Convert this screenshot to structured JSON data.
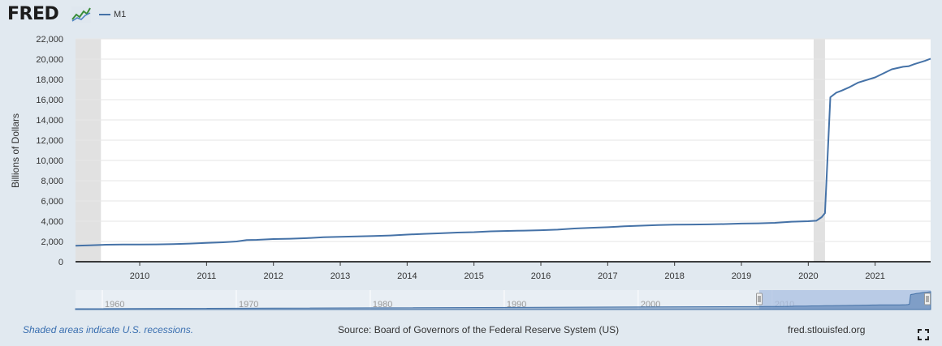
{
  "header": {
    "logo_text": "FRED",
    "logo_icon": "fred-line-graph-icon"
  },
  "footer": {
    "recession_note": "Shaded areas indicate U.S. recessions.",
    "source": "Source: Board of Governors of the Federal Reserve System (US)",
    "site": "fred.stlouisfed.org",
    "fullscreen_icon": "fullscreen-icon"
  },
  "colors": {
    "series": "#4572a7",
    "recession": "#e1e1e1",
    "background": "#e1e9f0",
    "plot": "#ffffff",
    "navigator_fill": "#a9bfe1"
  },
  "chart_data": {
    "type": "line",
    "title": "",
    "xlabel": "",
    "ylabel": "Billions of Dollars",
    "legend": "top-left",
    "grid": true,
    "ylim": [
      0,
      22000
    ],
    "xlim": [
      2009.04,
      2021.83
    ],
    "y_ticks": [
      "0",
      "2,000",
      "4,000",
      "6,000",
      "8,000",
      "10,000",
      "12,000",
      "14,000",
      "16,000",
      "18,000",
      "20,000",
      "22,000"
    ],
    "y_tick_values": [
      0,
      2000,
      4000,
      6000,
      8000,
      10000,
      12000,
      14000,
      16000,
      18000,
      20000,
      22000
    ],
    "x_ticks": [
      "2010",
      "2011",
      "2012",
      "2013",
      "2014",
      "2015",
      "2016",
      "2017",
      "2018",
      "2019",
      "2020",
      "2021"
    ],
    "x_tick_values": [
      2010,
      2011,
      2012,
      2013,
      2014,
      2015,
      2016,
      2017,
      2018,
      2019,
      2020,
      2021
    ],
    "recessions": [
      [
        2009.04,
        2009.42
      ],
      [
        2020.08,
        2020.25
      ]
    ],
    "series": [
      {
        "name": "M1",
        "x": [
          2009.04,
          2009.25,
          2009.5,
          2009.75,
          2010.0,
          2010.25,
          2010.5,
          2010.75,
          2011.0,
          2011.25,
          2011.45,
          2011.6,
          2011.75,
          2012.0,
          2012.25,
          2012.5,
          2012.75,
          2013.0,
          2013.25,
          2013.5,
          2013.75,
          2014.0,
          2014.25,
          2014.5,
          2014.75,
          2015.0,
          2015.25,
          2015.5,
          2015.75,
          2016.0,
          2016.25,
          2016.5,
          2016.75,
          2017.0,
          2017.25,
          2017.5,
          2017.75,
          2018.0,
          2018.25,
          2018.5,
          2018.75,
          2019.0,
          2019.25,
          2019.5,
          2019.75,
          2020.0,
          2020.12,
          2020.2,
          2020.25,
          2020.33,
          2020.42,
          2020.5,
          2020.62,
          2020.75,
          2021.0,
          2021.25,
          2021.42,
          2021.5,
          2021.58,
          2021.75,
          2021.83
        ],
        "y": [
          1580,
          1620,
          1680,
          1700,
          1700,
          1710,
          1740,
          1790,
          1860,
          1920,
          2000,
          2140,
          2160,
          2240,
          2270,
          2330,
          2420,
          2460,
          2500,
          2540,
          2590,
          2680,
          2750,
          2810,
          2880,
          2920,
          3000,
          3040,
          3070,
          3110,
          3170,
          3280,
          3350,
          3410,
          3500,
          3560,
          3620,
          3660,
          3670,
          3690,
          3720,
          3770,
          3790,
          3840,
          3950,
          4000,
          4050,
          4400,
          4800,
          16240,
          16700,
          16900,
          17250,
          17700,
          18200,
          19000,
          19250,
          19300,
          19500,
          19850,
          20050
        ]
      }
    ],
    "navigator": {
      "x_ticks": [
        "1960",
        "1970",
        "1980",
        "1990",
        "2000",
        "2010"
      ],
      "x_tick_values": [
        1960,
        1970,
        1980,
        1990,
        2000,
        2010
      ],
      "xlim": [
        1958.0,
        2021.83
      ],
      "selected": [
        2009.04,
        2021.83
      ]
    }
  }
}
